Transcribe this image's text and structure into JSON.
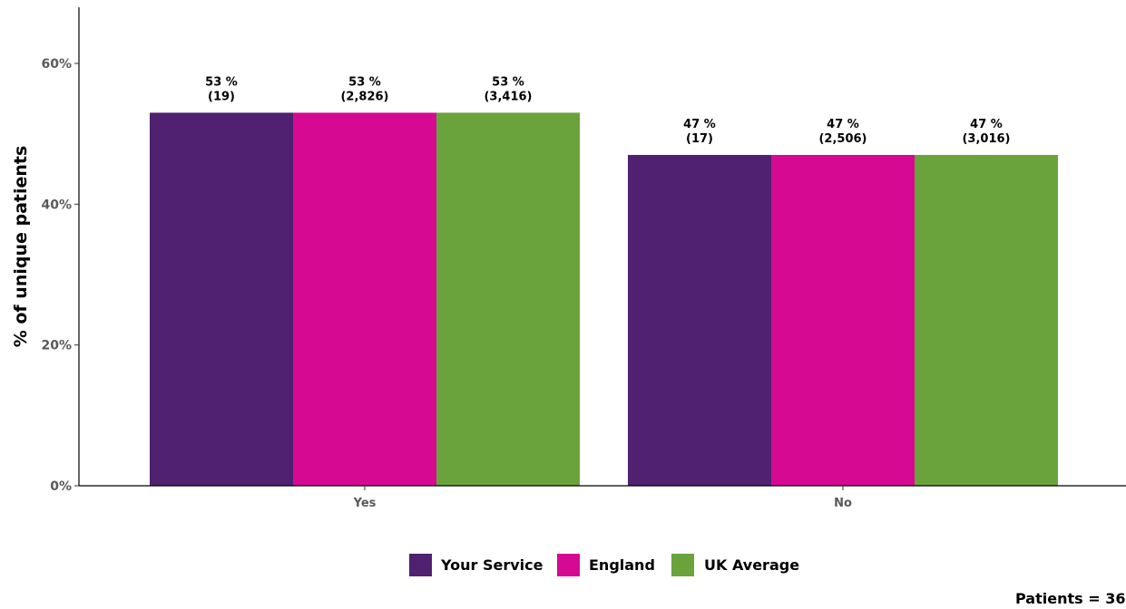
{
  "chart_data": {
    "type": "bar",
    "categories": [
      "Yes",
      "No"
    ],
    "series": [
      {
        "name": "Your Service",
        "color": "#4f2170",
        "values": [
          53,
          47
        ],
        "counts": [
          "(19)",
          "(17)"
        ],
        "labels": [
          "53 %",
          "47 %"
        ]
      },
      {
        "name": "England",
        "color": "#d60a92",
        "values": [
          53,
          47
        ],
        "counts": [
          "(2,826)",
          "(2,506)"
        ],
        "labels": [
          "53 %",
          "47 %"
        ]
      },
      {
        "name": "UK Average",
        "color": "#6aa33c",
        "values": [
          53,
          47
        ],
        "counts": [
          "(3,416)",
          "(3,016)"
        ],
        "labels": [
          "53 %",
          "47 %"
        ]
      }
    ],
    "ylabel": "% of unique patients",
    "xlabel": "",
    "ylim": [
      0,
      60
    ],
    "yticks": [
      "0%",
      "20%",
      "40%",
      "60%"
    ],
    "ytick_values": [
      0,
      20,
      40,
      60
    ],
    "grid": false,
    "legend_position": "bottom"
  },
  "footer_note": "Patients = 36"
}
